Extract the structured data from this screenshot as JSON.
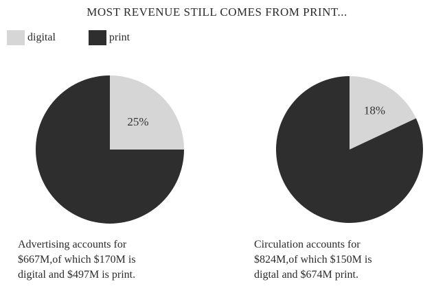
{
  "title": "MOST REVENUE STILL COMES FROM PRINT...",
  "legend": {
    "digital_label": "digital",
    "print_label": "print"
  },
  "colors": {
    "digital": "#d6d6d6",
    "print": "#2e2e2e",
    "label_text": "#333333"
  },
  "captions": {
    "left": [
      "Advertising accounts for",
      "$667M,of which $170M is",
      "digital and $497M is print."
    ],
    "right": [
      "Circulation accounts for",
      "$824M,of which $150M is",
      "digtal and $674M print."
    ]
  },
  "chart_data": [
    {
      "type": "pie",
      "slices": [
        {
          "name": "digital",
          "value": 25,
          "label": "25%"
        },
        {
          "name": "print",
          "value": 75,
          "label": ""
        }
      ]
    },
    {
      "type": "pie",
      "slices": [
        {
          "name": "digital",
          "value": 18,
          "label": "18%"
        },
        {
          "name": "print",
          "value": 82,
          "label": ""
        }
      ]
    }
  ]
}
